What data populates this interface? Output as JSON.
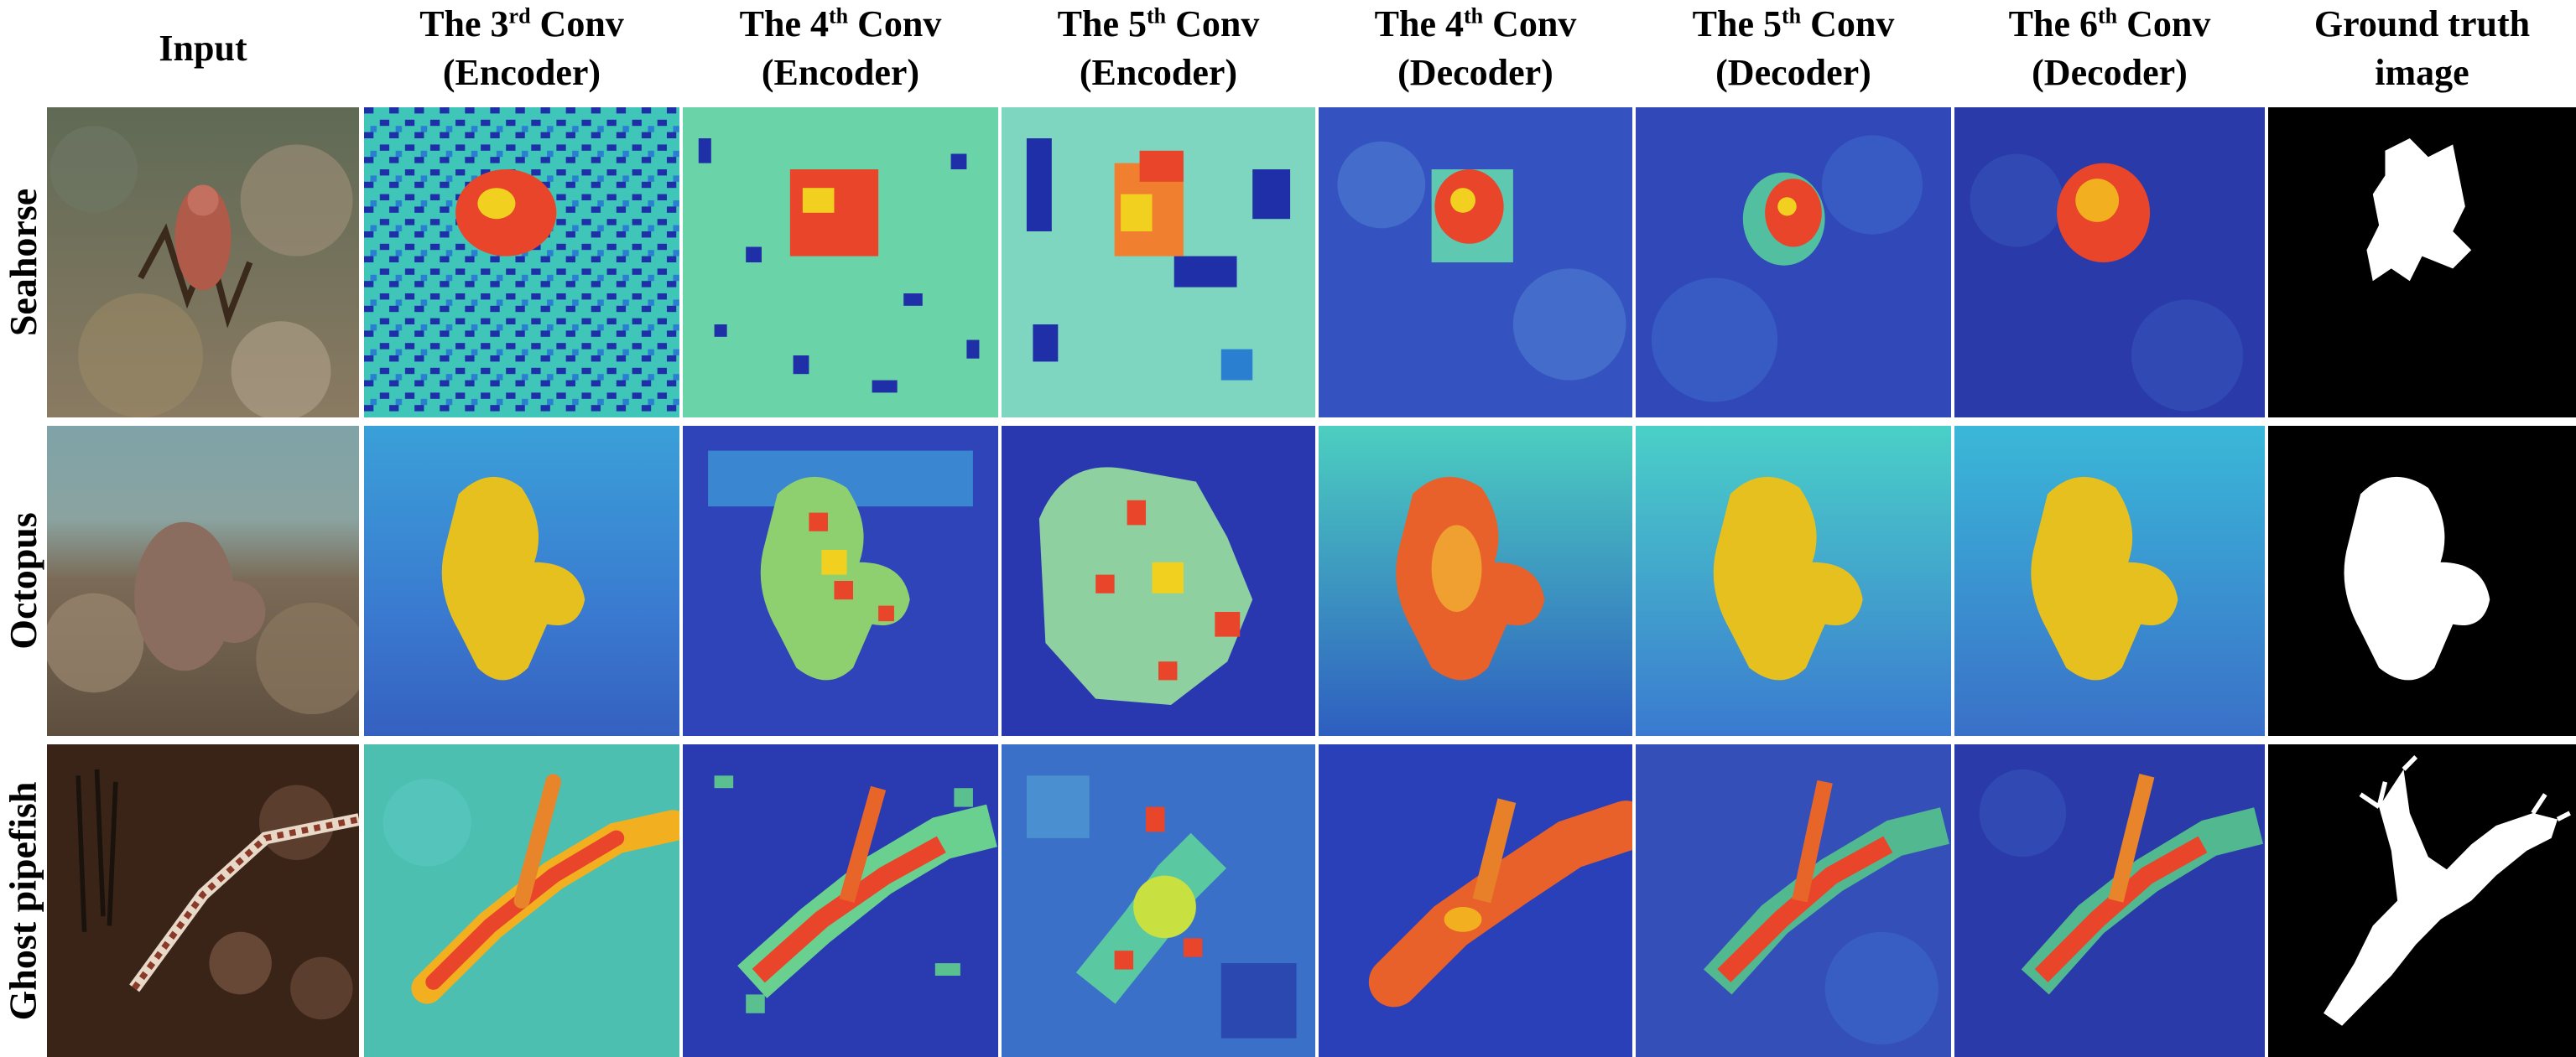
{
  "columns": [
    {
      "line1_pre": "Input",
      "sup": "",
      "line1_post": "",
      "line2": ""
    },
    {
      "line1_pre": "The 3",
      "sup": "rd",
      "line1_post": " Conv",
      "line2": "(Encoder)"
    },
    {
      "line1_pre": "The 4",
      "sup": "th",
      "line1_post": " Conv",
      "line2": "(Encoder)"
    },
    {
      "line1_pre": "The 5",
      "sup": "th",
      "line1_post": " Conv",
      "line2": "(Encoder)"
    },
    {
      "line1_pre": "The 4",
      "sup": "th",
      "line1_post": " Conv",
      "line2": "(Decoder)"
    },
    {
      "line1_pre": "The 5",
      "sup": "th",
      "line1_post": " Conv",
      "line2": "(Decoder)"
    },
    {
      "line1_pre": "The 6",
      "sup": "th",
      "line1_post": " Conv",
      "line2": "(Decoder)"
    },
    {
      "line1_pre": "Ground truth",
      "sup": "",
      "line1_post": "",
      "line2": "image"
    }
  ],
  "rows": [
    {
      "label": "Seahorse"
    },
    {
      "label": "Octopus"
    },
    {
      "label": "Ghost pipefish"
    }
  ],
  "colors": {
    "heat_low": "#1e2fa8",
    "heat_mid": "#3fc6b8",
    "heat_high": "#e8452a",
    "heat_peak": "#f2d020",
    "mask_background": "#000000",
    "mask_object": "#ffffff"
  }
}
